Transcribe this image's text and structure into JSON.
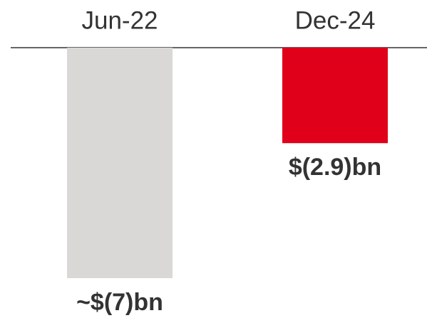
{
  "chart_data": {
    "type": "bar",
    "categories": [
      "Jun-22",
      "Dec-24"
    ],
    "values": [
      -7,
      -2.9
    ],
    "value_labels": [
      "~$(7)bn",
      "$(2.9)bn"
    ],
    "colors": [
      "#d9d8d6",
      "#e0001a"
    ],
    "ylim": [
      -7,
      0
    ]
  }
}
